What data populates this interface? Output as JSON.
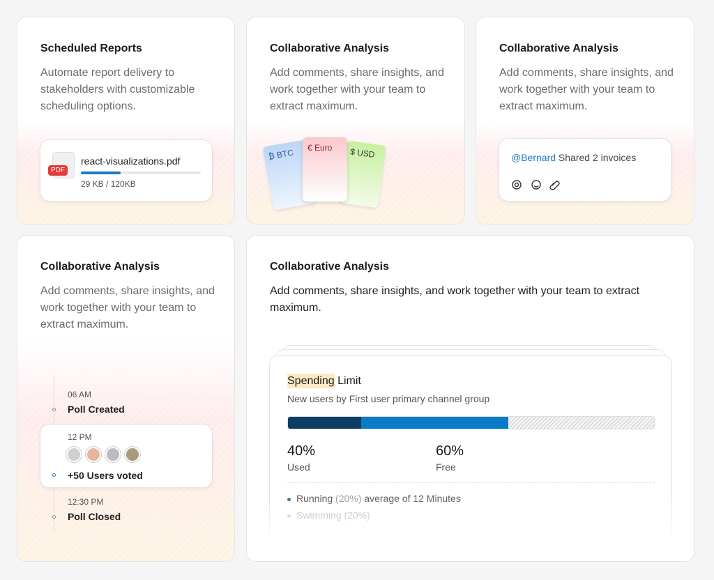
{
  "cards": [
    {
      "title": "Scheduled Reports",
      "description": "Automate report delivery to stakeholders with customizable scheduling options.",
      "file": {
        "badge": "PDF",
        "name": "react-visualizations.pdf",
        "size": "29 KB / 120KB"
      }
    },
    {
      "title": "Collaborative Analysis",
      "description": "Add comments, share insights, and work together with your team to extract maximum.",
      "invoices": [
        "₿ BTC",
        "€ Euro",
        "$ USD"
      ]
    },
    {
      "title": "Collaborative Analysis",
      "description": "Add comments, share insights, and work together with your team to extract maximum.",
      "comment": {
        "mention": "@Bernard",
        "text": "Shared 2 invoices"
      }
    },
    {
      "title": "Collaborative Analysis",
      "description": "Add comments, share insights, and work together with your team to extract maximum.",
      "timeline": [
        {
          "time": "06 AM",
          "label": "Poll Created"
        },
        {
          "time": "12 PM",
          "label": "+50 Users voted"
        },
        {
          "time": "12:30 PM",
          "label": "Poll Closed"
        }
      ]
    },
    {
      "title": "Collaborative Analysis",
      "description": "Add comments, share insights, and work together with your team to extract maximum.",
      "widget": {
        "highlight": "Spending",
        "title": "Limit",
        "subtitle": "New users by First user primary channel group",
        "stats": [
          {
            "value": "40%",
            "label": "Used"
          },
          {
            "value": "60%",
            "label": "Free"
          }
        ],
        "items": [
          {
            "name": "Running",
            "pct": "(20%)",
            "note": "average of 12 Minutes"
          },
          {
            "name": "Swimming",
            "pct": "(20%)"
          }
        ]
      }
    }
  ]
}
